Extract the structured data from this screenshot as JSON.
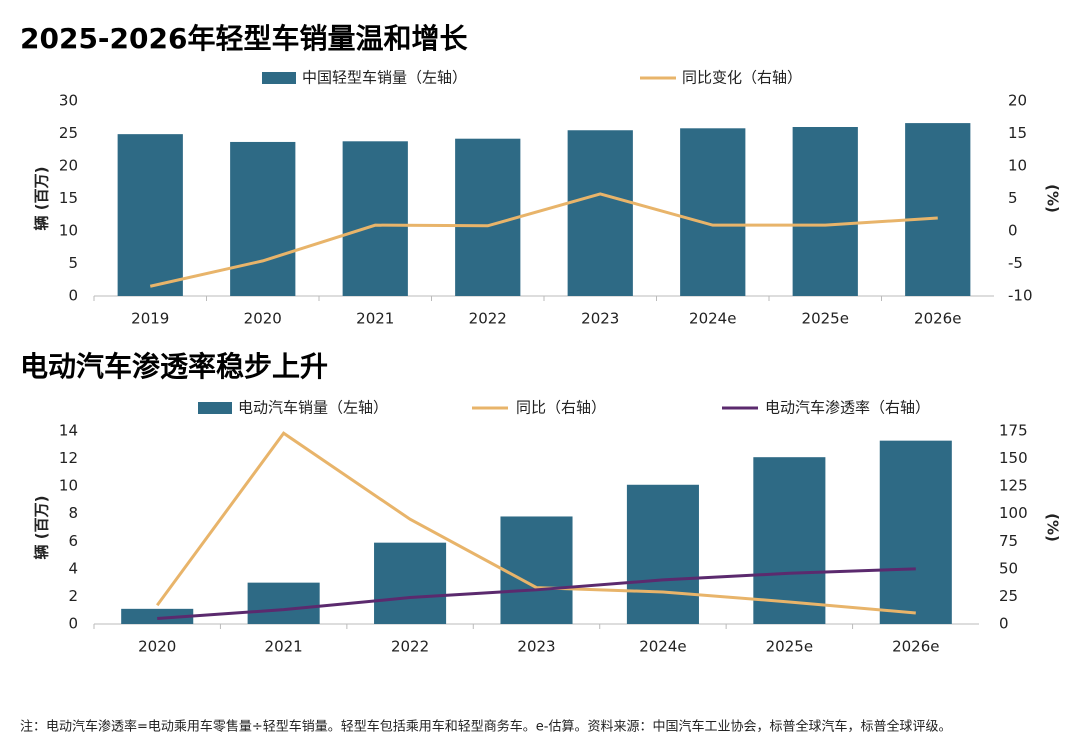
{
  "chart_data": [
    {
      "type": "combo",
      "title": "2025-2026年轻型车销量温和增长",
      "categories": [
        "2019",
        "2020",
        "2021",
        "2022",
        "2023",
        "2024e",
        "2025e",
        "2026e"
      ],
      "series": [
        {
          "name": "中国轻型车销量（左轴）",
          "mark": "bar",
          "color": "#2e6a85",
          "values": [
            24.9,
            23.7,
            23.8,
            24.2,
            25.5,
            25.8,
            26.0,
            26.6
          ]
        },
        {
          "name": "同比变化（右轴）",
          "mark": "line",
          "axis": "y2",
          "color": "#e8b46a",
          "values": [
            -8.5,
            -4.6,
            0.9,
            0.8,
            5.7,
            0.9,
            0.9,
            2.0
          ]
        }
      ],
      "y_label": "辆 (百万)",
      "y2_label": "(%)",
      "ylim": [
        0,
        30
      ],
      "yticks": [
        0,
        5,
        10,
        15,
        20,
        25,
        30
      ],
      "y2lim": [
        -10,
        20
      ],
      "y2ticks": [
        -10,
        -5,
        0,
        5,
        10,
        15,
        20
      ],
      "grid": false
    },
    {
      "type": "combo",
      "title": "电动汽车渗透率稳步上升",
      "categories": [
        "2020",
        "2021",
        "2022",
        "2023",
        "2024e",
        "2025e",
        "2026e"
      ],
      "series": [
        {
          "name": "电动汽车销量（左轴）",
          "mark": "bar",
          "color": "#2e6a85",
          "values": [
            1.1,
            3.0,
            5.9,
            7.8,
            10.1,
            12.1,
            13.3
          ]
        },
        {
          "name": "同比（右轴）",
          "mark": "line",
          "axis": "y2",
          "color": "#e8b46a",
          "values": [
            17,
            173,
            95,
            33,
            29,
            20,
            10
          ]
        },
        {
          "name": "电动汽车渗透率（右轴）",
          "mark": "line",
          "axis": "y2",
          "color": "#5b2a6e",
          "values": [
            5,
            13,
            24,
            31,
            40,
            46,
            50
          ]
        }
      ],
      "y_label": "辆 (百万)",
      "y2_label": "(%)",
      "ylim": [
        0,
        14
      ],
      "yticks": [
        0,
        2,
        4,
        6,
        8,
        10,
        12,
        14
      ],
      "y2lim": [
        0,
        175
      ],
      "y2ticks": [
        0,
        25,
        50,
        75,
        100,
        125,
        150,
        175
      ],
      "grid": false
    }
  ],
  "note": "注：电动汽车渗透率=电动乘用车零售量÷轻型车销量。轻型车包括乘用车和轻型商务车。e-估算。资料来源：中国汽车工业协会，标普全球汽车，标普全球评级。"
}
